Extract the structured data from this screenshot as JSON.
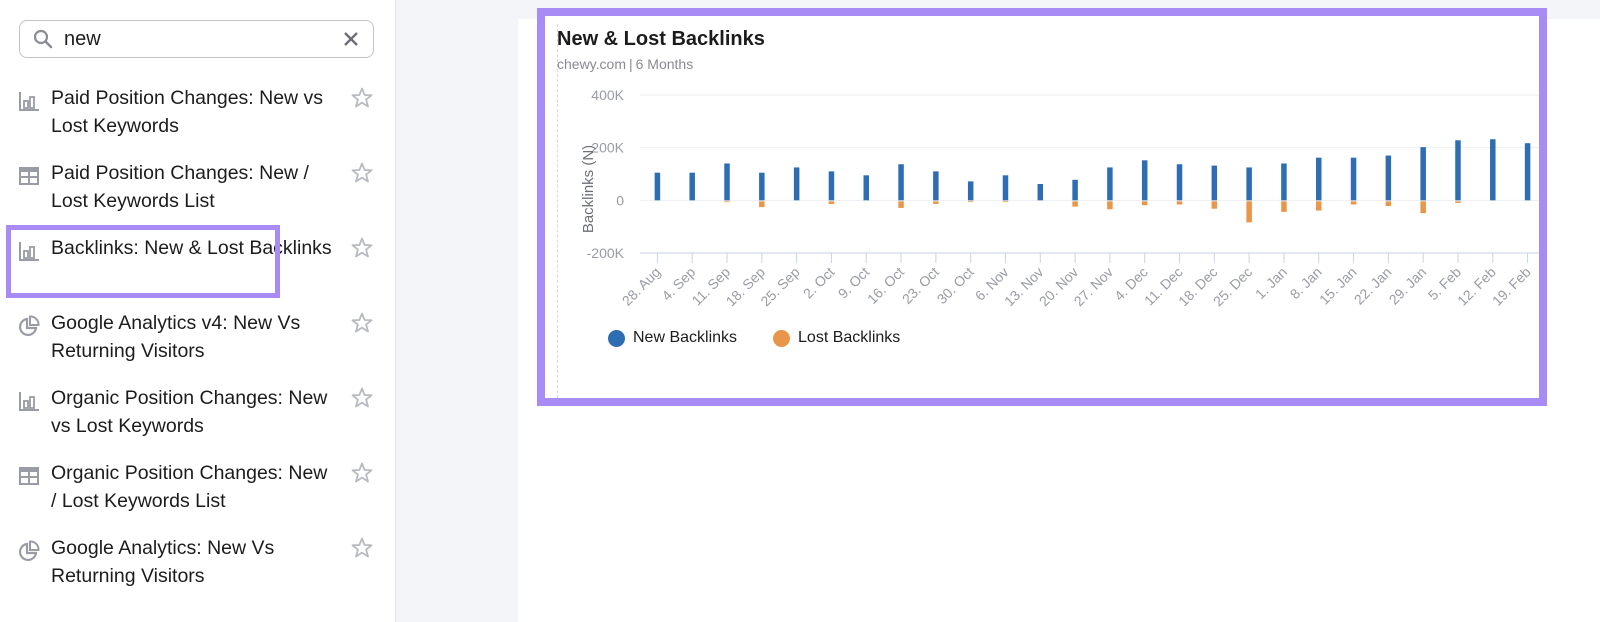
{
  "sidebar": {
    "search": {
      "value": "new",
      "placeholder": ""
    },
    "items": [
      {
        "icon": "bar-chart-icon",
        "label": "Paid Position Changes: New vs Lost Keywords",
        "selected": false
      },
      {
        "icon": "table-icon",
        "label": "Paid Position Changes: New / Lost Keywords List",
        "selected": false
      },
      {
        "icon": "bar-chart-icon",
        "label": "Backlinks: New & Lost Backlinks",
        "selected": true
      },
      {
        "icon": "pie-chart-icon",
        "label": "Google Analytics v4: New Vs Returning Visitors",
        "selected": false
      },
      {
        "icon": "bar-chart-icon",
        "label": "Organic Position Changes: New vs Lost Keywords",
        "selected": false
      },
      {
        "icon": "table-icon",
        "label": "Organic Position Changes: New / Lost Keywords List",
        "selected": false
      },
      {
        "icon": "pie-chart-icon",
        "label": "Google Analytics: New Vs Returning Visitors",
        "selected": false
      }
    ]
  },
  "widget": {
    "title": "New & Lost Backlinks",
    "domain": "chewy.com",
    "period": "6 Months",
    "legend": [
      {
        "label": "New Backlinks",
        "color": "#2f6db3"
      },
      {
        "label": "Lost Backlinks",
        "color": "#e8974a"
      }
    ]
  },
  "colors": {
    "highlight": "#a98bf5",
    "new": "#2f6db3",
    "lost": "#e8974a"
  },
  "chart_data": {
    "type": "bar",
    "title": "New & Lost Backlinks",
    "subtitle": "chewy.com | 6 Months",
    "xlabel": "",
    "ylabel": "Backlinks (N)",
    "ylim": [
      -200000,
      400000
    ],
    "yticks": [
      400000,
      200000,
      0,
      -200000
    ],
    "ytick_labels": [
      "400K",
      "200K",
      "0",
      "-200K"
    ],
    "grid": true,
    "legend_position": "bottom-left",
    "categories": [
      "28. Aug",
      "4. Sep",
      "11. Sep",
      "18. Sep",
      "25. Sep",
      "2. Oct",
      "9. Oct",
      "16. Oct",
      "23. Oct",
      "30. Oct",
      "6. Nov",
      "13. Nov",
      "20. Nov",
      "27. Nov",
      "4. Dec",
      "11. Dec",
      "18. Dec",
      "25. Dec",
      "1. Jan",
      "8. Jan",
      "15. Jan",
      "22. Jan",
      "29. Jan",
      "5. Feb",
      "12. Feb",
      "19. Feb"
    ],
    "series": [
      {
        "name": "New Backlinks",
        "color": "#2f6db3",
        "values": [
          105000,
          105000,
          140000,
          105000,
          125000,
          110000,
          95000,
          137000,
          110000,
          72000,
          95000,
          62000,
          78000,
          125000,
          152000,
          137000,
          132000,
          125000,
          140000,
          162000,
          162000,
          170000,
          202000,
          228000,
          232000,
          217000
        ]
      },
      {
        "name": "Lost Backlinks",
        "color": "#e8974a",
        "values": [
          0,
          0,
          -3000,
          -22000,
          0,
          -10000,
          0,
          -25000,
          -10000,
          -3000,
          -3000,
          0,
          -20000,
          -30000,
          -15000,
          -12000,
          -28000,
          -80000,
          -40000,
          -35000,
          -12000,
          -18000,
          -45000,
          -6000,
          0,
          0
        ]
      }
    ]
  }
}
